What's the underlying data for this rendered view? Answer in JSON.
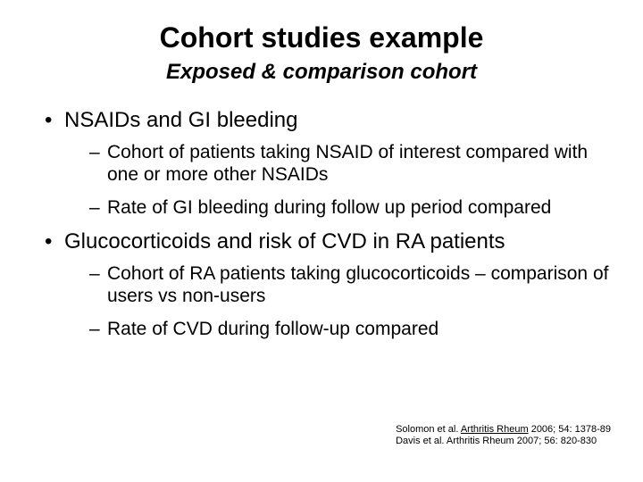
{
  "title": "Cohort studies example",
  "subtitle": "Exposed & comparison cohort",
  "bullets": [
    {
      "text": "NSAIDs and GI bleeding",
      "sub": [
        "Cohort of patients taking NSAID of interest compared with one or more other NSAIDs",
        "Rate of GI bleeding during follow up period compared"
      ]
    },
    {
      "text": "Glucocorticoids and risk of CVD in RA patients",
      "sub": [
        "Cohort of RA patients taking glucocorticoids – comparison of users vs non-users",
        "Rate of CVD  during follow-up compared"
      ]
    }
  ],
  "refs": {
    "line1_pre": "Solomon et al. ",
    "line1_underlined": "Arthritis Rheum",
    "line1_post": " 2006; 54: 1378-89",
    "line2": "Davis et al. Arthritis Rheum 2007; 56: 820-830"
  },
  "colors": {
    "background": "#ffffff",
    "text": "#000000"
  },
  "typography": {
    "title_fontsize": 32,
    "subtitle_fontsize": 24,
    "bullet_fontsize": 24,
    "subbullet_fontsize": 21,
    "ref_fontsize": 11,
    "font_family": "Arial"
  }
}
